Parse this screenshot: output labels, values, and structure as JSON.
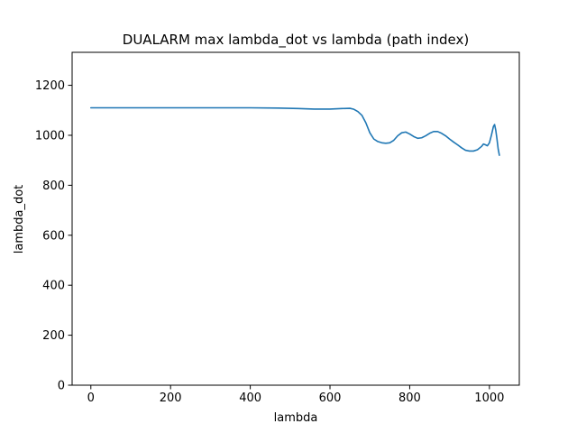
{
  "chart_data": {
    "type": "line",
    "title": "DUALARM max lambda_dot vs lambda (path index)",
    "xlabel": "lambda",
    "ylabel": "lambda_dot",
    "xlim": [
      -47,
      1075
    ],
    "ylim": [
      0,
      1332
    ],
    "xticks": [
      0,
      200,
      400,
      600,
      800,
      1000
    ],
    "yticks": [
      0,
      200,
      400,
      600,
      800,
      1000,
      1200
    ],
    "grid": false,
    "line_color": "#1f77b4",
    "series": [
      {
        "name": "",
        "x": [
          0,
          50,
          100,
          200,
          300,
          400,
          470,
          520,
          560,
          600,
          630,
          650,
          660,
          670,
          680,
          690,
          700,
          710,
          720,
          730,
          740,
          750,
          760,
          770,
          780,
          790,
          800,
          810,
          820,
          830,
          840,
          850,
          860,
          870,
          880,
          890,
          900,
          910,
          920,
          930,
          940,
          950,
          960,
          970,
          980,
          985,
          990,
          995,
          1000,
          1005,
          1010,
          1013,
          1016,
          1019,
          1022,
          1025
        ],
        "y": [
          1110,
          1110,
          1110,
          1110,
          1110,
          1110,
          1109,
          1107,
          1105,
          1105,
          1107,
          1108,
          1104,
          1095,
          1080,
          1050,
          1010,
          985,
          975,
          970,
          968,
          970,
          980,
          998,
          1010,
          1013,
          1005,
          995,
          988,
          990,
          998,
          1008,
          1015,
          1015,
          1008,
          998,
          985,
          973,
          962,
          950,
          940,
          937,
          937,
          942,
          955,
          965,
          962,
          958,
          970,
          1000,
          1035,
          1043,
          1020,
          985,
          945,
          920
        ]
      }
    ]
  }
}
